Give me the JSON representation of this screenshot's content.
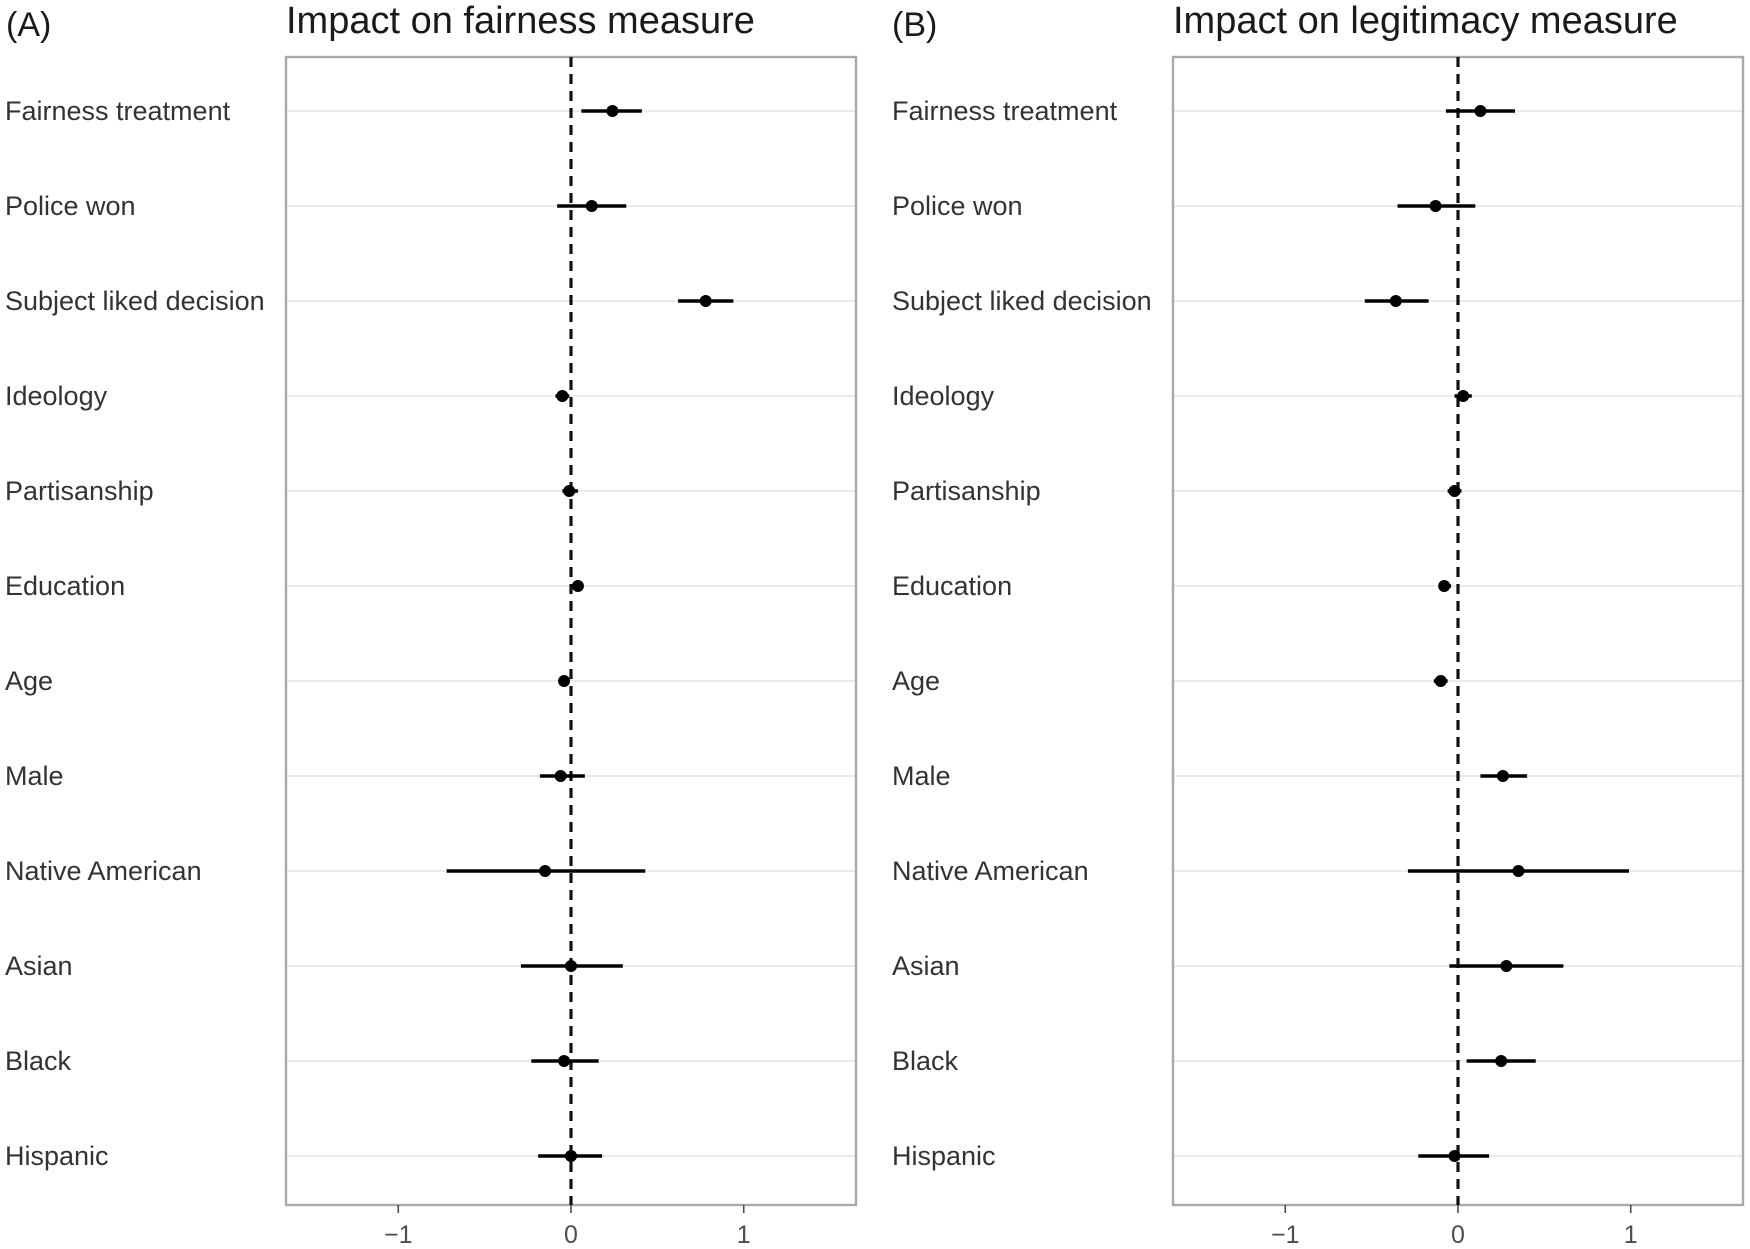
{
  "chart_data": [
    {
      "panel": "(A)",
      "type": "scatter",
      "title": "Impact on fairness measure",
      "xlim": [
        -1.65,
        1.65
      ],
      "xticks": [
        "−1",
        "0",
        "1"
      ],
      "xtick_values": [
        -1,
        0,
        1
      ],
      "reference_line": 0,
      "categories": [
        "Fairness treatment",
        "Police won",
        "Subject liked decision",
        "Ideology",
        "Partisanship",
        "Education",
        "Age",
        "Male",
        "Native American",
        "Asian",
        "Black",
        "Hispanic"
      ],
      "estimates": [
        0.24,
        0.12,
        0.78,
        -0.05,
        -0.01,
        0.04,
        -0.04,
        -0.06,
        -0.15,
        0.0,
        -0.04,
        0.0
      ],
      "ci_low": [
        0.06,
        -0.08,
        0.62,
        -0.09,
        -0.05,
        0.02,
        -0.07,
        -0.18,
        -0.72,
        -0.29,
        -0.23,
        -0.19
      ],
      "ci_high": [
        0.41,
        0.32,
        0.94,
        -0.01,
        0.04,
        0.07,
        -0.01,
        0.08,
        0.43,
        0.3,
        0.16,
        0.18
      ]
    },
    {
      "panel": "(B)",
      "type": "scatter",
      "title": "Impact on legitimacy measure",
      "xlim": [
        -1.65,
        1.65
      ],
      "xticks": [
        "−1",
        "0",
        "1"
      ],
      "xtick_values": [
        -1,
        0,
        1
      ],
      "reference_line": 0,
      "categories": [
        "Fairness treatment",
        "Police won",
        "Subject liked decision",
        "Ideology",
        "Partisanship",
        "Education",
        "Age",
        "Male",
        "Native American",
        "Asian",
        "Black",
        "Hispanic"
      ],
      "estimates": [
        0.13,
        -0.13,
        -0.36,
        0.03,
        -0.02,
        -0.08,
        -0.1,
        0.26,
        0.35,
        0.28,
        0.25,
        -0.02
      ],
      "ci_low": [
        -0.07,
        -0.35,
        -0.54,
        -0.02,
        -0.06,
        -0.11,
        -0.14,
        0.13,
        -0.29,
        -0.05,
        0.05,
        -0.23
      ],
      "ci_high": [
        0.33,
        0.1,
        -0.17,
        0.08,
        0.02,
        -0.04,
        -0.06,
        0.4,
        0.99,
        0.61,
        0.45,
        0.18
      ]
    }
  ]
}
